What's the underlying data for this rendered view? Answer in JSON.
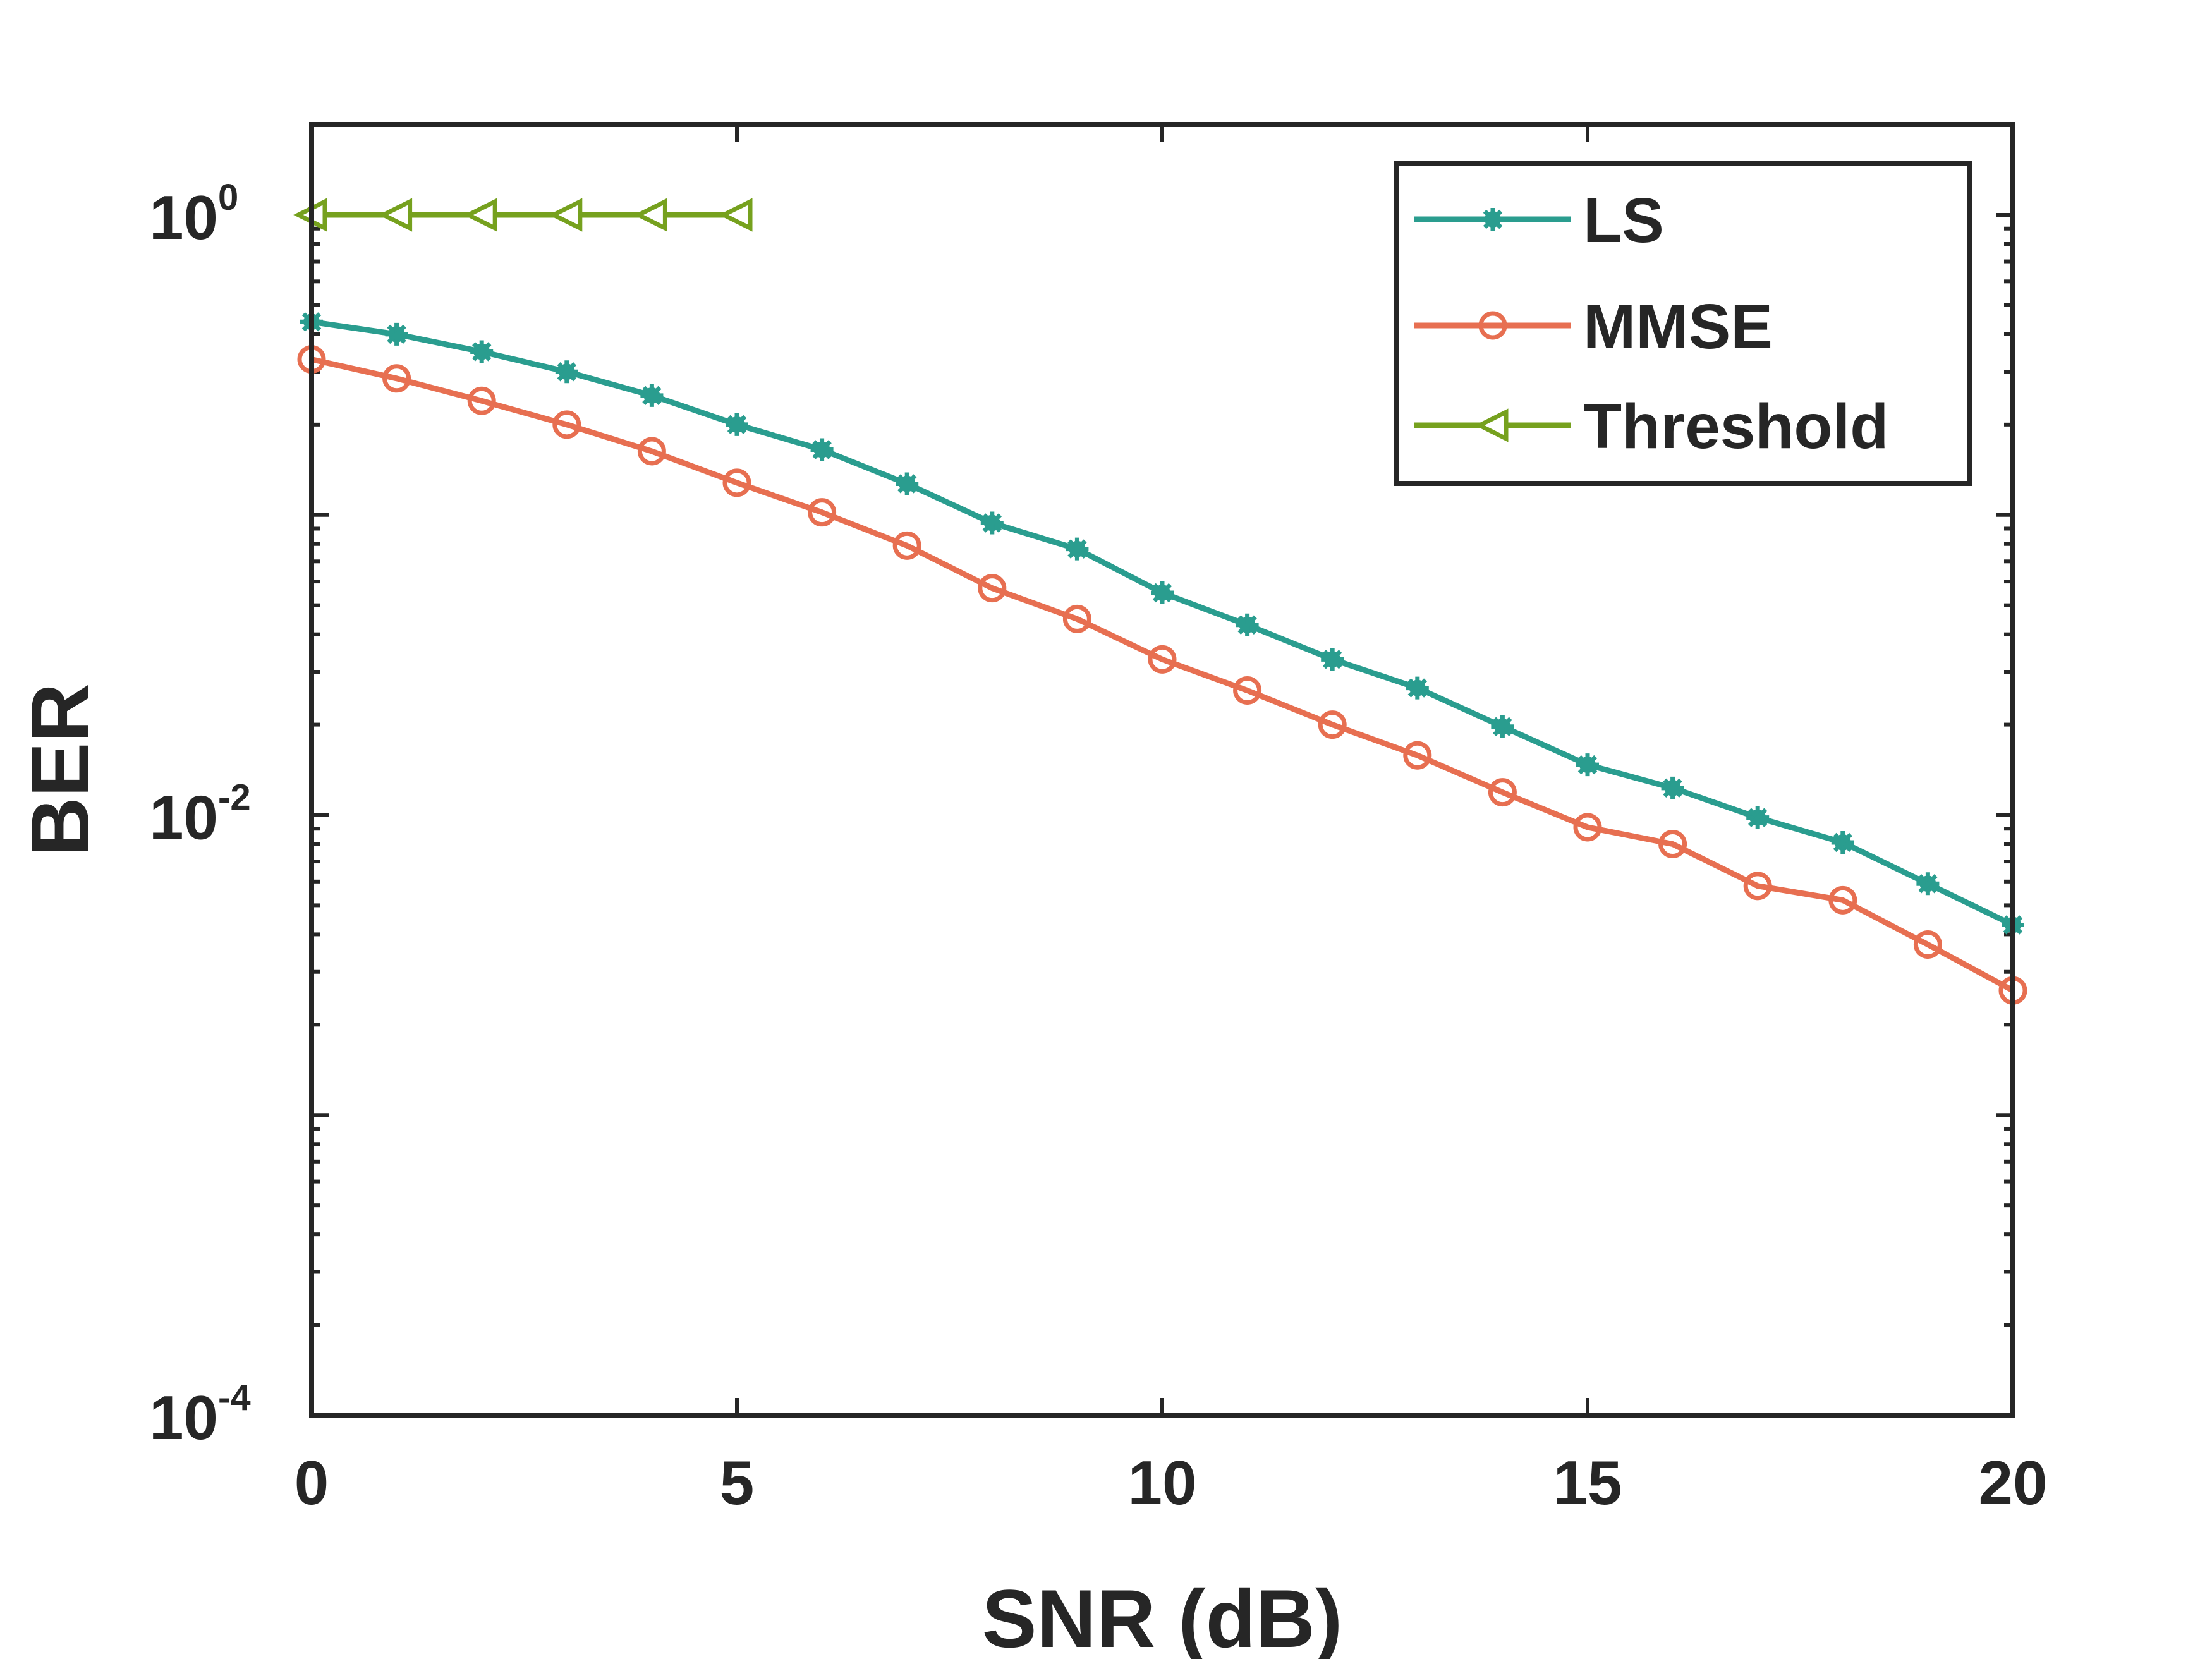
{
  "chart_data": {
    "type": "line",
    "title": "",
    "xlabel": "SNR (dB)",
    "ylabel": "BER",
    "yscale": "log",
    "xlim": [
      0,
      20
    ],
    "ylim": [
      0.0001,
      2
    ],
    "xticks": [
      0,
      5,
      10,
      15,
      20
    ],
    "xtick_labels": [
      "0",
      "5",
      "10",
      "15",
      "20"
    ],
    "yticks": [
      {
        "value": 1,
        "base": "10",
        "exp": "0"
      },
      {
        "value": 0.01,
        "base": "10",
        "exp": "-2"
      },
      {
        "value": 0.0001,
        "base": "10",
        "exp": "-4"
      }
    ],
    "grid": false,
    "legend_position": "top-right",
    "series": [
      {
        "name": "LS",
        "color": "#2a9d8f",
        "marker": "asterisk",
        "x": [
          0,
          1,
          2,
          3,
          4,
          5,
          6,
          7,
          8,
          9,
          10,
          11,
          12,
          13,
          14,
          15,
          16,
          17,
          18,
          19,
          20
        ],
        "values": [
          0.44,
          0.4,
          0.35,
          0.3,
          0.25,
          0.2,
          0.165,
          0.127,
          0.094,
          0.077,
          0.055,
          0.043,
          0.033,
          0.0265,
          0.0197,
          0.0147,
          0.0123,
          0.0098,
          0.0081,
          0.0059,
          0.0043
        ]
      },
      {
        "name": "MMSE",
        "color": "#e76f51",
        "marker": "circle",
        "x": [
          0,
          1,
          2,
          3,
          4,
          5,
          6,
          7,
          8,
          9,
          10,
          11,
          12,
          13,
          14,
          15,
          16,
          17,
          18,
          19,
          20
        ],
        "values": [
          0.33,
          0.285,
          0.24,
          0.2,
          0.163,
          0.128,
          0.102,
          0.079,
          0.057,
          0.045,
          0.033,
          0.026,
          0.02,
          0.0158,
          0.0119,
          0.0091,
          0.008,
          0.0058,
          0.0052,
          0.0037,
          0.0026
        ]
      },
      {
        "name": "Threshold",
        "color": "#76a11e",
        "marker": "triangle-left",
        "x": [
          0,
          1,
          2,
          3,
          4,
          5
        ],
        "values": [
          1,
          1,
          1,
          1,
          1,
          1
        ]
      }
    ]
  }
}
